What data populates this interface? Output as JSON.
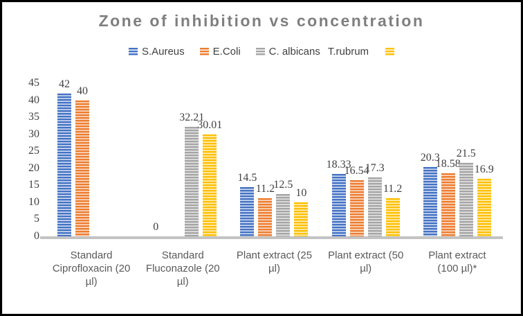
{
  "chart_data": {
    "type": "bar",
    "title": "Zone of inhibition vs concentration",
    "categories": [
      "Standard Ciprofloxacin (20 µl)",
      "Standard Fluconazole (20 µl)",
      "Plant extract (25 µl)",
      "Plant extract (50 µl)",
      "Plant extract (100 µl)*"
    ],
    "category_display_lines": [
      "Standard\nCiprofloxacin (20\nµl)",
      "Standard\nFluconazole (20\nµl)",
      "Plant extract (25\nµl)",
      "Plant extract (50\nµl)",
      "Plant extract\n(100 µl)*"
    ],
    "series": [
      {
        "name": "S.Aureus",
        "color": "#4472C4",
        "light_color": "#dbe4f4",
        "values": [
          42,
          0,
          14.5,
          18.33,
          20.3
        ],
        "labels": [
          "42",
          "0",
          "14.5",
          "18.33",
          "20.3"
        ]
      },
      {
        "name": "E.Coli",
        "color": "#ED7D31",
        "light_color": "#fbe3d2",
        "values": [
          40,
          0,
          11.2,
          16.54,
          18.58
        ],
        "labels": [
          "40",
          null,
          "11.2",
          "16.54",
          "18.58"
        ]
      },
      {
        "name": "C. albicans",
        "color": "#A5A5A5",
        "light_color": "#e9e9e9",
        "values": [
          0,
          32.21,
          12.5,
          17.3,
          21.5
        ],
        "labels": [
          null,
          "32.21",
          "12.5",
          "17.3",
          "21.5"
        ]
      },
      {
        "name": "T.rubrum",
        "color": "#FFC000",
        "light_color": "#fff2cc",
        "values": [
          0,
          30.01,
          10,
          11.2,
          16.9
        ],
        "labels": [
          null,
          "30.01",
          "10",
          "11.2",
          "16.9"
        ]
      }
    ],
    "legend": [
      {
        "label": "S.Aureus",
        "color": "#4472C4",
        "swatch": "before"
      },
      {
        "label": "E.Coli",
        "color": "#ED7D31",
        "swatch": "before"
      },
      {
        "label": "C. albicans",
        "color": "#A5A5A5",
        "swatch": "before"
      },
      {
        "label": "T.rubrum",
        "color": "#FFC000",
        "swatch": "after"
      }
    ],
    "ylim": [
      0,
      45
    ],
    "yticks": [
      0,
      5,
      10,
      15,
      20,
      25,
      30,
      35,
      40,
      45
    ],
    "grid": false,
    "legend_position": "top"
  },
  "colors": {
    "title": "#7f7f7f",
    "axis_line": "#c3c3c3",
    "tick_label": "#404040",
    "data_label": "#404040",
    "category_label": "#595959",
    "border": "#000000",
    "background": "#ffffff"
  }
}
